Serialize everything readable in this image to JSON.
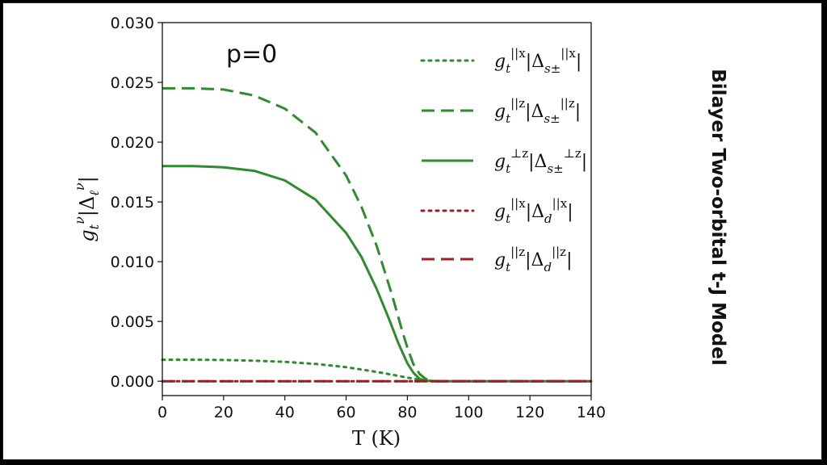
{
  "side_title": "Bilayer Two-orbital t-J Model",
  "colors": {
    "green": "#2e8b2e",
    "red": "#a31c24"
  },
  "chart_data": {
    "type": "line",
    "annotation": "p=0",
    "xlabel": "T (K)",
    "ylabel": "g_t^ν|Δ_ℓ^ν|",
    "xlim": [
      0,
      140
    ],
    "ylim": [
      -0.0012,
      0.03
    ],
    "xticks": [
      0,
      20,
      40,
      60,
      80,
      100,
      120,
      140
    ],
    "yticks": [
      "0.000",
      "0.005",
      "0.010",
      "0.015",
      "0.020",
      "0.025",
      "0.030"
    ],
    "legend_position": "top-right",
    "series": [
      {
        "name": "g_t^{||x}|Δ_{s±}^{||x}|",
        "color": "#2e8b2e",
        "style": "dotted",
        "x": [
          0,
          10,
          20,
          30,
          40,
          50,
          60,
          70,
          75,
          80,
          85,
          88,
          90,
          100,
          120,
          140
        ],
        "y": [
          0.0018,
          0.0018,
          0.00178,
          0.00172,
          0.00162,
          0.00145,
          0.00118,
          0.00078,
          0.00055,
          0.0003,
          0.0001,
          2e-05,
          0,
          0,
          0,
          0
        ]
      },
      {
        "name": "g_t^{||z}|Δ_{s±}^{||z}|",
        "color": "#2e8b2e",
        "style": "dashed",
        "x": [
          0,
          10,
          20,
          30,
          40,
          50,
          60,
          65,
          70,
          75,
          78,
          80,
          82,
          84,
          86,
          88,
          90,
          100,
          120,
          140
        ],
        "y": [
          0.0245,
          0.0245,
          0.0244,
          0.0239,
          0.0228,
          0.0208,
          0.0172,
          0.0146,
          0.0113,
          0.0072,
          0.0045,
          0.0028,
          0.0014,
          0.0006,
          0.0002,
          5e-05,
          0,
          0,
          0,
          0
        ]
      },
      {
        "name": "g_t^{⊥z}|Δ_{s±}^{⊥z}|",
        "color": "#2e8b2e",
        "style": "solid",
        "x": [
          0,
          10,
          20,
          30,
          40,
          50,
          60,
          65,
          70,
          74,
          77,
          80,
          82,
          84,
          86,
          88,
          90,
          100,
          120,
          140
        ],
        "y": [
          0.018,
          0.018,
          0.0179,
          0.0176,
          0.0168,
          0.0152,
          0.0124,
          0.0104,
          0.0077,
          0.0052,
          0.0032,
          0.0015,
          0.0007,
          0.0002,
          5e-05,
          0,
          0,
          0,
          0,
          0
        ]
      },
      {
        "name": "g_t^{||x}|Δ_d^{||x}|",
        "color": "#a31c24",
        "style": "dotted",
        "x": [
          0,
          140
        ],
        "y": [
          0,
          0
        ]
      },
      {
        "name": "g_t^{||z}|Δ_d^{||z}|",
        "color": "#a31c24",
        "style": "dashed",
        "x": [
          0,
          140
        ],
        "y": [
          0,
          0
        ]
      }
    ]
  }
}
